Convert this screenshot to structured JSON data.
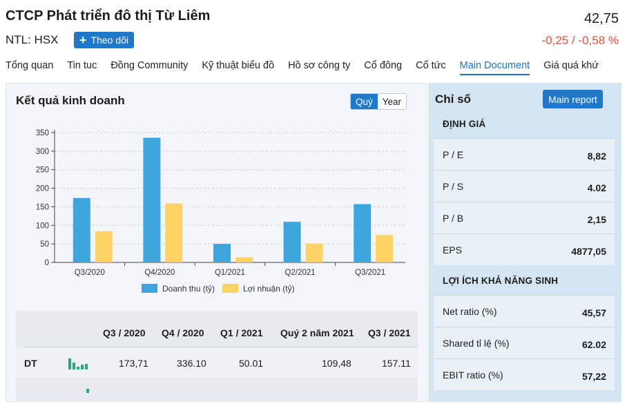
{
  "header": {
    "company": "CTCP Phát triển đô thị Từ Liêm",
    "price": "42,75",
    "ticker": "NTL: HSX",
    "follow_label": "Theo dõi",
    "change": "-0,25 / -0,58 %"
  },
  "tabs": [
    "Tổng quan",
    "Tin tuc",
    "Đồng Community",
    "Kỹ thuật biểu đồ",
    "Hồ sơ công ty",
    "Cổ đông",
    "Cổ tức",
    "Main Document",
    "Giá quá khứ"
  ],
  "active_tab": "Main Document",
  "results": {
    "title": "Kết quả kinh doanh",
    "toggle_quarter": "Quý",
    "toggle_year": "Year"
  },
  "chart_data": {
    "type": "bar",
    "categories": [
      "Q3/2020",
      "Q4/2020",
      "Q1/2021",
      "Q2/2021",
      "Q3/2021"
    ],
    "series": [
      {
        "name": "Doanh thu (tỷ)",
        "values": [
          173.71,
          336.1,
          50.01,
          109.48,
          157.11
        ]
      },
      {
        "name": "Lợi nhuận (tỷ)",
        "values": [
          84,
          159,
          14,
          51,
          74
        ]
      }
    ],
    "yticks": [
      0,
      50,
      100,
      150,
      200,
      250,
      300,
      350
    ],
    "ylim": [
      0,
      350
    ],
    "grid": true,
    "legend": "bottom",
    "colors": [
      "#3ea6dc",
      "#fdd365"
    ]
  },
  "table": {
    "headers": [
      "Q3 / 2020",
      "Q4 / 2020",
      "Q1 / 2021",
      "Quý 2 năm 2021",
      "Q3 / 2021"
    ],
    "rows": [
      {
        "label": "DT",
        "values": [
          "173,71",
          "336.10",
          "50.01",
          "109,48",
          "157.11"
        ]
      }
    ],
    "spark_color": "#2fa37d"
  },
  "indices": {
    "title": "Chỉ số",
    "report_button": "Main report",
    "valuation_title": "ĐỊNH GIÁ",
    "valuation": [
      {
        "key": "P / E",
        "value": "8,82"
      },
      {
        "key": "P / S",
        "value": "4.02"
      },
      {
        "key": "P / B",
        "value": "2,15"
      },
      {
        "key": "EPS",
        "value": "4877,05"
      }
    ],
    "profit_title": "LỢI ÍCH KHẢ NĂNG SINH",
    "profitability": [
      {
        "key": "Net ratio (%)",
        "value": "45,57"
      },
      {
        "key": "Shared tỉ lệ (%)",
        "value": "62.02"
      },
      {
        "key": "EBIT ratio (%)",
        "value": "57,22"
      }
    ]
  },
  "colors": {
    "accent": "#2079c8",
    "negative": "#e94e3c",
    "panel_bg": "#f2f5f9",
    "sidebar_bg": "#d4e4f1"
  }
}
